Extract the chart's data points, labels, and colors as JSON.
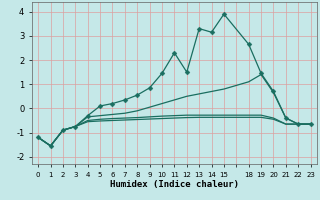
{
  "xlabel": "Humidex (Indice chaleur)",
  "bg_color": "#c5e8e8",
  "grid_color": "#dca0a0",
  "line_color": "#1a6e60",
  "ylim": [
    -2.3,
    4.4
  ],
  "yticks": [
    -2,
    -1,
    0,
    1,
    2,
    3,
    4
  ],
  "xtick_labels": [
    "0",
    "1",
    "2",
    "3",
    "4",
    "5",
    "6",
    "7",
    "8",
    "9",
    "10",
    "11",
    "12",
    "13",
    "14",
    "15",
    "",
    "18",
    "19",
    "20",
    "21",
    "22",
    "23"
  ],
  "n_xpoints": 23,
  "line1_x": [
    0,
    1,
    2,
    3,
    4,
    5,
    6,
    7,
    8,
    9,
    10,
    11,
    12,
    13,
    14,
    15,
    17,
    18,
    19,
    20,
    21,
    22
  ],
  "line1_y": [
    -1.2,
    -1.55,
    -0.9,
    -0.75,
    -0.3,
    0.1,
    0.2,
    0.35,
    0.55,
    0.85,
    1.45,
    2.3,
    1.5,
    3.3,
    3.15,
    3.9,
    2.65,
    1.45,
    0.7,
    -0.4,
    -0.65,
    -0.65
  ],
  "line2_x": [
    0,
    1,
    2,
    3,
    4,
    5,
    6,
    7,
    8,
    9,
    10,
    11,
    12,
    13,
    14,
    15,
    17,
    18,
    19,
    20,
    21,
    22
  ],
  "line2_y": [
    -1.2,
    -1.55,
    -0.9,
    -0.75,
    -0.35,
    -0.3,
    -0.25,
    -0.2,
    -0.1,
    0.05,
    0.2,
    0.35,
    0.5,
    0.6,
    0.7,
    0.8,
    1.1,
    1.4,
    0.65,
    -0.4,
    -0.65,
    -0.65
  ],
  "line3_x": [
    0,
    1,
    2,
    3,
    4,
    5,
    6,
    7,
    8,
    9,
    10,
    11,
    12,
    13,
    14,
    15,
    17,
    18,
    19,
    20,
    21,
    22
  ],
  "line3_y": [
    -1.2,
    -1.55,
    -0.9,
    -0.75,
    -0.5,
    -0.45,
    -0.42,
    -0.4,
    -0.38,
    -0.35,
    -0.32,
    -0.3,
    -0.28,
    -0.28,
    -0.28,
    -0.28,
    -0.28,
    -0.28,
    -0.4,
    -0.65,
    -0.65,
    -0.65
  ],
  "line4_x": [
    0,
    1,
    2,
    3,
    4,
    5,
    6,
    7,
    8,
    9,
    10,
    11,
    12,
    13,
    14,
    15,
    17,
    18,
    19,
    20,
    21,
    22
  ],
  "line4_y": [
    -1.2,
    -1.55,
    -0.9,
    -0.75,
    -0.55,
    -0.52,
    -0.5,
    -0.48,
    -0.46,
    -0.44,
    -0.42,
    -0.4,
    -0.38,
    -0.37,
    -0.37,
    -0.37,
    -0.37,
    -0.37,
    -0.45,
    -0.65,
    -0.65,
    -0.65
  ]
}
